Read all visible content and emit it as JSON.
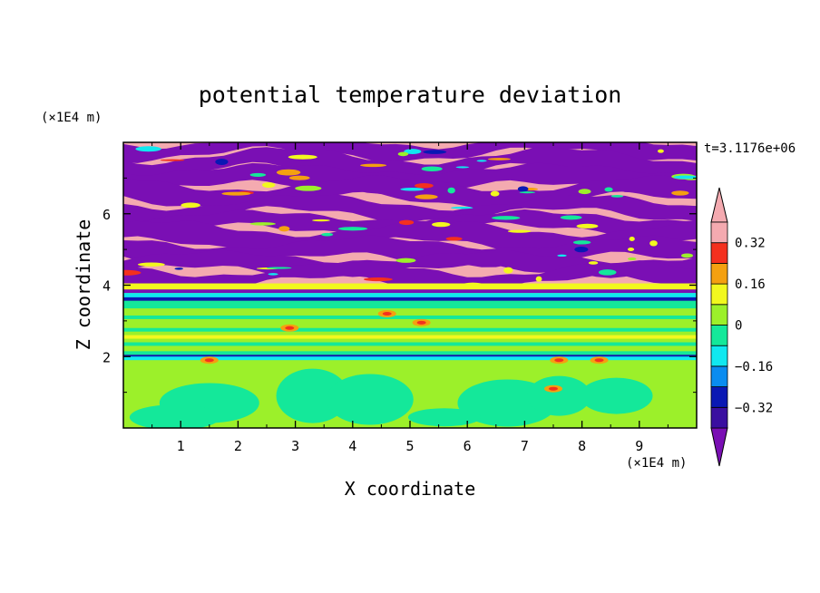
{
  "chart_data": {
    "type": "heatmap",
    "title": "potential temperature deviation",
    "xlabel": "X coordinate",
    "ylabel": "Z coordinate",
    "x_unit": "(×1E4 m)",
    "y_unit": "(×1E4 m)",
    "time_label": "t=3.1176e+06",
    "xlim": [
      0,
      10
    ],
    "ylim": [
      0,
      8
    ],
    "x_ticks": [
      1,
      2,
      3,
      4,
      5,
      6,
      7,
      8,
      9
    ],
    "y_ticks": [
      2,
      4,
      6
    ],
    "colorbar": {
      "levels": [
        -0.4,
        -0.32,
        -0.24,
        -0.16,
        -0.08,
        0,
        0.08,
        0.16,
        0.24,
        0.32,
        0.4
      ],
      "tick_labels": [
        "0.32",
        "0.16",
        "0",
        "−0.16",
        "−0.32"
      ],
      "tick_values": [
        0.32,
        0.16,
        0,
        -0.16,
        -0.32
      ],
      "colors": [
        "#7a0fb4",
        "#3a0fa0",
        "#0a18b4",
        "#0a8cf0",
        "#10e8f0",
        "#14e89a",
        "#9cf02a",
        "#f2f81e",
        "#f4a010",
        "#f4301e",
        "#f4aab0"
      ],
      "extend": "both"
    },
    "colors": {
      "pink": "#f4aab0",
      "purple": "#7a0fb4",
      "green": "#9cf02a",
      "teal": "#14e89a",
      "yellow": "#f2f81e",
      "blue": "#0a18b4",
      "cyan": "#10e8f0",
      "orange": "#f4a010",
      "red": "#f4301e"
    }
  }
}
